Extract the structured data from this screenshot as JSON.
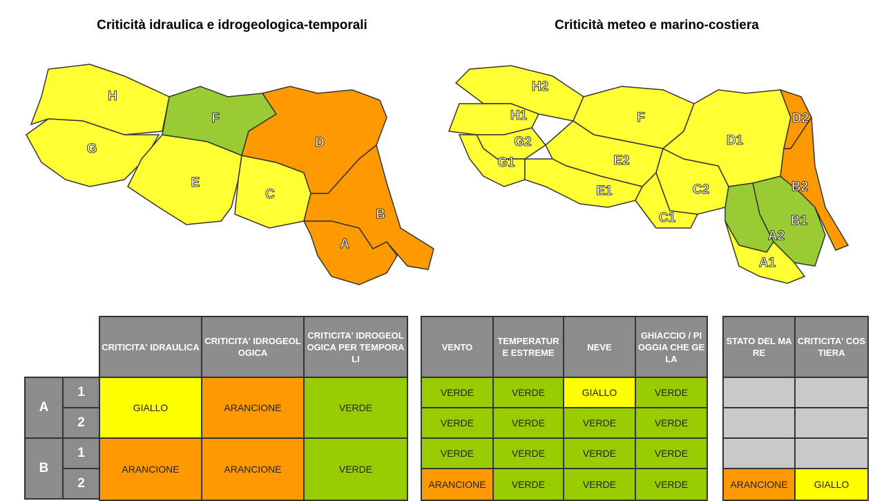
{
  "maps": [
    {
      "title": "Criticità idraulica e idrogeologica-temporali",
      "zones": [
        {
          "label": "H",
          "color": "#ffff33"
        },
        {
          "label": "G",
          "color": "#ffff33"
        },
        {
          "label": "F",
          "color": "#99cc33"
        },
        {
          "label": "E",
          "color": "#ffff33"
        },
        {
          "label": "C",
          "color": "#ffff33"
        },
        {
          "label": "D",
          "color": "#ff9900"
        },
        {
          "label": "B",
          "color": "#ff9900"
        },
        {
          "label": "A",
          "color": "#ff9900"
        }
      ]
    },
    {
      "title": "Criticità meteo e marino-costiera",
      "zones": [
        {
          "label": "H2",
          "color": "#ffff33"
        },
        {
          "label": "H1",
          "color": "#ffff33"
        },
        {
          "label": "G2",
          "color": "#ffff33"
        },
        {
          "label": "G1",
          "color": "#ffff33"
        },
        {
          "label": "F",
          "color": "#ffff33"
        },
        {
          "label": "E2",
          "color": "#ffff33"
        },
        {
          "label": "E1",
          "color": "#ffff33"
        },
        {
          "label": "C2",
          "color": "#ffff33"
        },
        {
          "label": "C1",
          "color": "#ffff33"
        },
        {
          "label": "D1",
          "color": "#ffff33"
        },
        {
          "label": "D2",
          "color": "#ff9900"
        },
        {
          "label": "B2",
          "color": "#ff9900"
        },
        {
          "label": "B1",
          "color": "#99cc33"
        },
        {
          "label": "A2",
          "color": "#99cc33"
        },
        {
          "label": "A1",
          "color": "#ffff33"
        }
      ]
    }
  ],
  "row_groups": [
    {
      "label": "A",
      "subs": [
        "1",
        "2"
      ]
    },
    {
      "label": "B",
      "subs": [
        "1",
        "2"
      ]
    }
  ],
  "tables": [
    {
      "headers": [
        "CRITICITA' IDRAULICA",
        "CRITICITA' IDROGEOLOGICA",
        "CRITICITA' IDROGEOLOGICA PER TEMPORALI"
      ],
      "rows": [
        [
          {
            "text": "GIALLO",
            "color": "#ffff00"
          },
          {
            "text": "ARANCIONE",
            "color": "#ff9900"
          },
          {
            "text": "VERDE",
            "color": "#99cc00"
          }
        ],
        [
          {
            "text": "ARANCIONE",
            "color": "#ff9900"
          },
          {
            "text": "ARANCIONE",
            "color": "#ff9900"
          },
          {
            "text": "VERDE",
            "color": "#99cc00"
          }
        ]
      ]
    },
    {
      "headers": [
        "VENTO",
        "TEMPERATURE ESTREME",
        "NEVE",
        "GHIACCIO / PIOGGIA CHE GELA"
      ],
      "rows": [
        [
          {
            "text": "VERDE",
            "color": "#99cc00"
          },
          {
            "text": "VERDE",
            "color": "#99cc00"
          },
          {
            "text": "GIALLO",
            "color": "#ffff00"
          },
          {
            "text": "VERDE",
            "color": "#99cc00"
          }
        ],
        [
          {
            "text": "VERDE",
            "color": "#99cc00"
          },
          {
            "text": "VERDE",
            "color": "#99cc00"
          },
          {
            "text": "VERDE",
            "color": "#99cc00"
          },
          {
            "text": "VERDE",
            "color": "#99cc00"
          }
        ],
        [
          {
            "text": "VERDE",
            "color": "#99cc00"
          },
          {
            "text": "VERDE",
            "color": "#99cc00"
          },
          {
            "text": "VERDE",
            "color": "#99cc00"
          },
          {
            "text": "VERDE",
            "color": "#99cc00"
          }
        ],
        [
          {
            "text": "ARANCIONE",
            "color": "#ff9900"
          },
          {
            "text": "VERDE",
            "color": "#99cc00"
          },
          {
            "text": "VERDE",
            "color": "#99cc00"
          },
          {
            "text": "VERDE",
            "color": "#99cc00"
          }
        ]
      ]
    },
    {
      "headers": [
        "STATO DEL MARE",
        "CRITICITA' COSTIERA"
      ],
      "rows": [
        [
          {
            "color": "#c8c8c8"
          },
          {
            "color": "#c8c8c8"
          }
        ],
        [
          {
            "color": "#c8c8c8"
          },
          {
            "color": "#c8c8c8"
          }
        ],
        [
          {
            "color": "#c8c8c8"
          },
          {
            "color": "#c8c8c8"
          }
        ],
        [
          {
            "text": "ARANCIONE",
            "color": "#ff9900"
          },
          {
            "text": "GIALLO",
            "color": "#ffff00"
          }
        ]
      ]
    }
  ]
}
